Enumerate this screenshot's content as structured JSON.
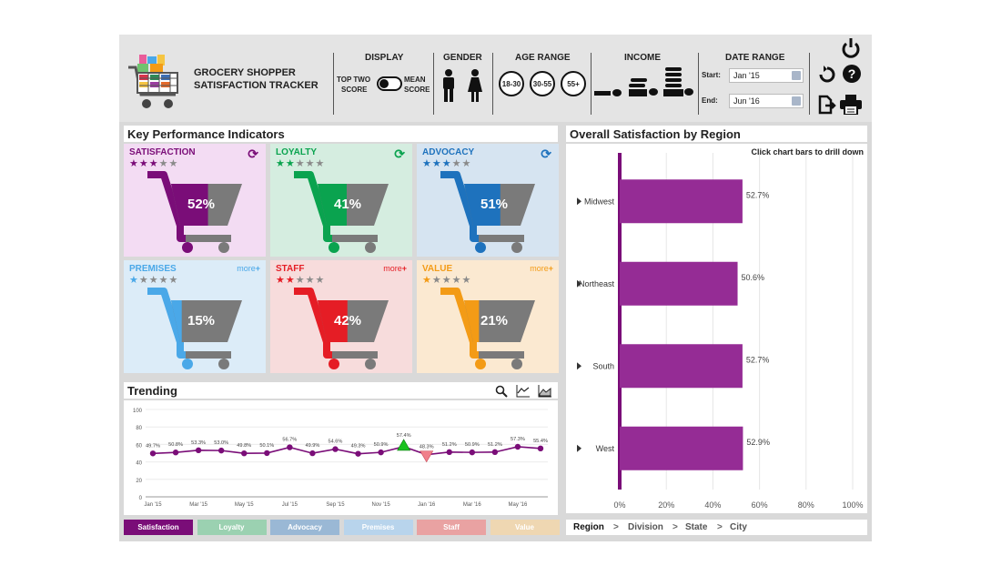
{
  "header": {
    "app_title_line1": "GROCERY SHOPPER",
    "app_title_line2": "SATISFACTION TRACKER",
    "display": {
      "title": "DISPLAY",
      "left_line1": "TOP TWO",
      "left_line2": "SCORE",
      "right_line1": "MEAN",
      "right_line2": "SCORE"
    },
    "gender": {
      "title": "GENDER"
    },
    "age_range": {
      "title": "AGE RANGE",
      "options": [
        "18-30",
        "30-55",
        "55+"
      ]
    },
    "income": {
      "title": "INCOME"
    },
    "date_range": {
      "title": "DATE RANGE",
      "start_label": "Start:",
      "start_value": "Jan '15",
      "end_label": "End:",
      "end_value": "Jun '16"
    }
  },
  "kpi": {
    "title": "Key Performance Indicators",
    "cards": [
      {
        "name": "SATISFACTION",
        "percent": "52%",
        "value": 0.52,
        "stars": 3,
        "color": "#7a0d78",
        "bg": "#f3dcf3",
        "action": "refresh"
      },
      {
        "name": "LOYALTY",
        "percent": "41%",
        "value": 0.41,
        "stars": 2,
        "color": "#0aa34f",
        "bg": "#d5ede0",
        "action": "refresh"
      },
      {
        "name": "ADVOCACY",
        "percent": "51%",
        "value": 0.51,
        "stars": 3,
        "color": "#1e72bd",
        "bg": "#d6e4f1",
        "action": "refresh"
      },
      {
        "name": "PREMISES",
        "percent": "15%",
        "value": 0.15,
        "stars": 1,
        "color": "#4aa8e8",
        "bg": "#dcecf8",
        "action": "more",
        "more_label": "more"
      },
      {
        "name": "STAFF",
        "percent": "42%",
        "value": 0.42,
        "stars": 2,
        "color": "#e51d25",
        "bg": "#f7dcdc",
        "action": "more",
        "more_label": "more"
      },
      {
        "name": "VALUE",
        "percent": "21%",
        "value": 0.21,
        "stars": 1,
        "color": "#f39b16",
        "bg": "#fbe9d1",
        "action": "more",
        "more_label": "more"
      }
    ]
  },
  "trending": {
    "title": "Trending",
    "tabs": [
      {
        "label": "Satisfaction",
        "color": "#7a0d78"
      },
      {
        "label": "Loyalty",
        "color": "#9bd1b1"
      },
      {
        "label": "Advocacy",
        "color": "#9ab8d5"
      },
      {
        "label": "Premises",
        "color": "#b8d4ec"
      },
      {
        "label": "Staff",
        "color": "#e9a2a2"
      },
      {
        "label": "Value",
        "color": "#efd7b2"
      }
    ]
  },
  "region": {
    "title": "Overall Satisfaction by Region",
    "hint": "Click chart bars to drill down",
    "breadcrumb": [
      "Region",
      "Division",
      "State",
      "City"
    ],
    "breadcrumb_sep": ">"
  },
  "chart_data": [
    {
      "type": "line",
      "x": [
        "Jan '15",
        "Feb '15",
        "Mar '15",
        "Apr '15",
        "May '15",
        "Jun '15",
        "Jul '15",
        "Aug '15",
        "Sep '15",
        "Oct '15",
        "Nov '15",
        "Dec '15",
        "Jan '16",
        "Feb '16",
        "Mar '16",
        "Apr '16",
        "May '16",
        "Jun '16"
      ],
      "x_tick_labels": [
        "Jan '15",
        "Mar '15",
        "May '15",
        "Jul '15",
        "Sep '15",
        "Nov '15",
        "Jan '16",
        "Mar '16",
        "May '16"
      ],
      "y_ticks": [
        0,
        20,
        40,
        60,
        80,
        100
      ],
      "ylim": [
        0,
        100
      ],
      "series": [
        {
          "values": [
            49.7,
            50.8,
            53.3,
            53.0,
            49.8,
            50.1,
            56.7,
            49.9,
            54.6,
            49.3,
            50.9,
            57.4,
            48.3,
            51.2,
            50.9,
            51.2,
            57.3,
            55.4
          ]
        }
      ],
      "data_labels": [
        "49.7%",
        "50.8%",
        "53.3%",
        "53.0%",
        "49.8%",
        "50.1%",
        "56.7%",
        "49.9%",
        "54.6%",
        "49.3%",
        "50.9%",
        "57.4%",
        "48.3%",
        "51.2%",
        "50.9%",
        "51.2%",
        "57.3%",
        "55.4%"
      ],
      "markers": {
        "up_index": 11,
        "down_index": 12
      }
    },
    {
      "type": "bar",
      "orientation": "horizontal",
      "categories": [
        "Midwest",
        "Northeast",
        "South",
        "West"
      ],
      "values": [
        52.7,
        50.6,
        52.7,
        52.9
      ],
      "data_labels": [
        "52.7%",
        "50.6%",
        "52.7%",
        "52.9%"
      ],
      "x_ticks": [
        "0%",
        "20%",
        "40%",
        "60%",
        "80%",
        "100%"
      ],
      "xlim": [
        0,
        100
      ],
      "color": "#952c95"
    }
  ]
}
